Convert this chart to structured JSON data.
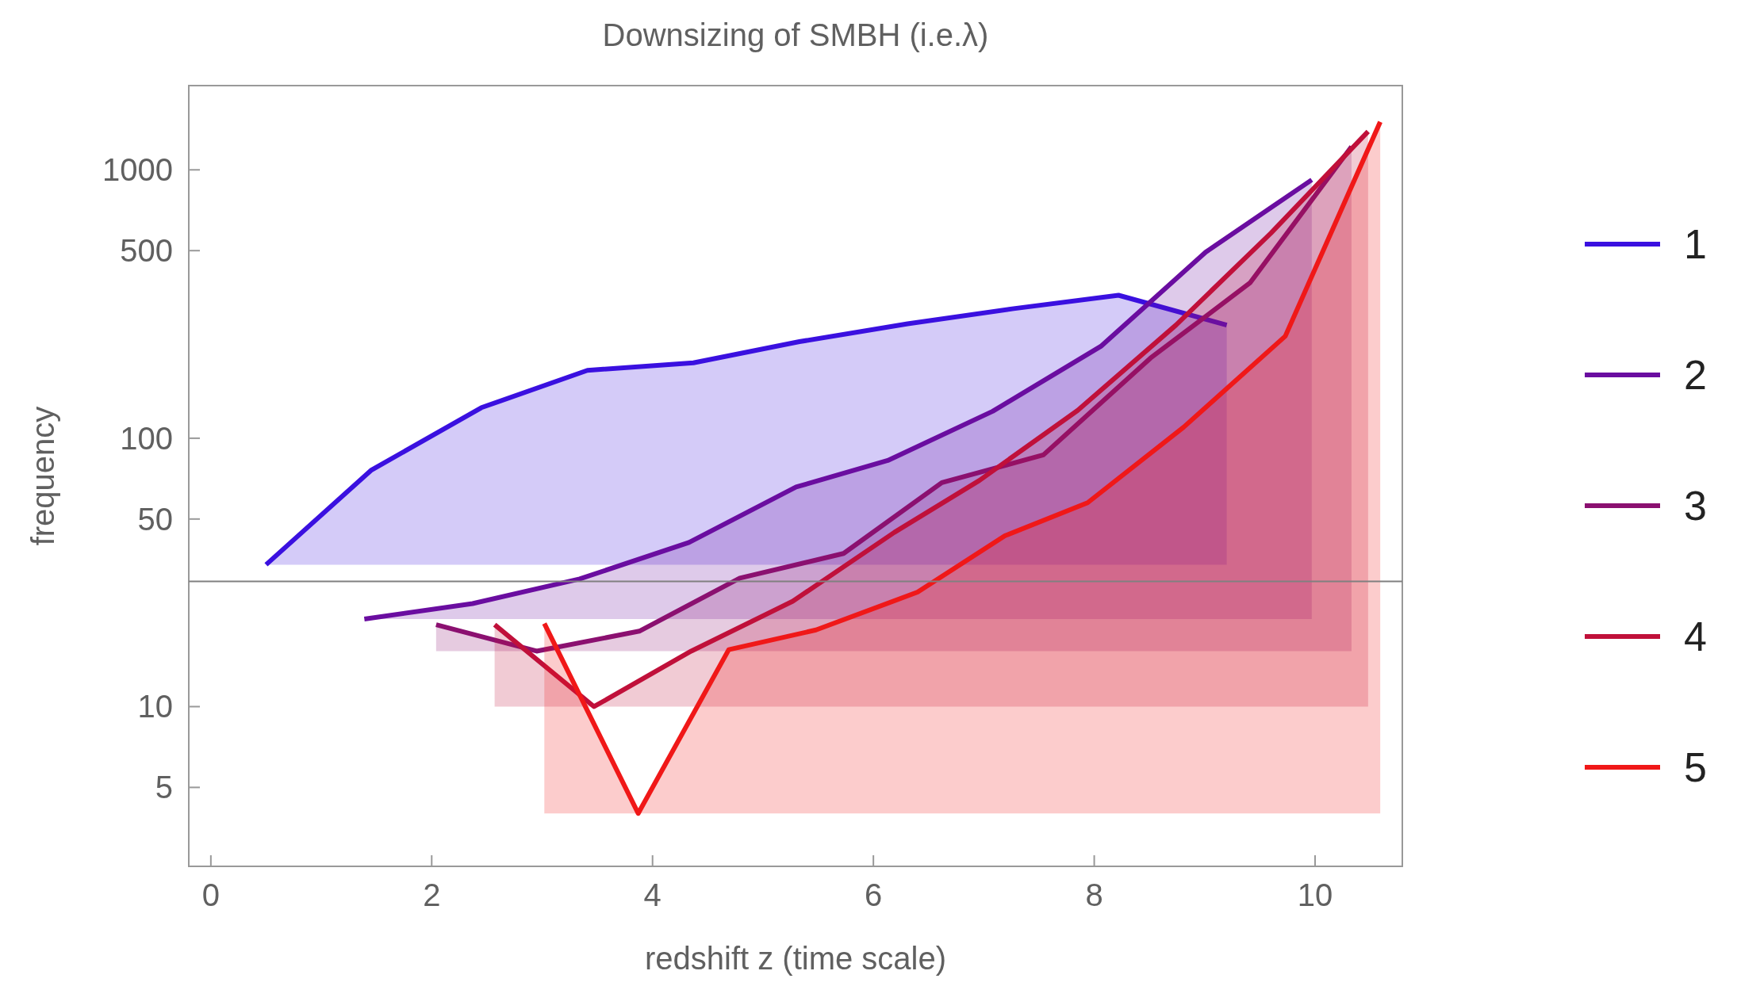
{
  "chart_data": {
    "type": "area",
    "title": "Downsizing of SMBH (i.e.λ)",
    "xlabel": "redshift z (time scale)",
    "ylabel": "frequency",
    "log": "y",
    "xlim": [
      -0.2,
      10.79
    ],
    "ylim": [
      2.54,
      2060
    ],
    "xticks": [
      0,
      2,
      4,
      6,
      8,
      10
    ],
    "yticks": [
      5,
      10,
      50,
      100,
      500,
      1000
    ],
    "legend": "right",
    "grid": false,
    "ref_lines": [
      {
        "axis": "y",
        "value": 29.3,
        "color": "#808080"
      }
    ],
    "series": [
      {
        "name": "1",
        "color": "#3a10e0",
        "x": [
          0.5,
          1.45,
          2.45,
          3.41,
          4.37,
          5.33,
          6.31,
          7.27,
          8.22,
          9.2
        ],
        "values": [
          33.8,
          75.9,
          130,
          179,
          191,
          229,
          267,
          304,
          341,
          264
        ]
      },
      {
        "name": "2",
        "color": "#6a0da0",
        "x": [
          1.39,
          2.37,
          3.34,
          4.33,
          5.3,
          6.13,
          7.08,
          8.06,
          9.01,
          9.97
        ],
        "values": [
          21.2,
          24.2,
          29.9,
          40.9,
          65.8,
          82.6,
          126,
          220,
          494,
          918
        ]
      },
      {
        "name": "3",
        "color": "#8b1070",
        "x": [
          2.04,
          2.95,
          3.88,
          4.79,
          5.73,
          6.62,
          7.54,
          8.51,
          9.41,
          10.33
        ],
        "values": [
          20.2,
          16.1,
          19.1,
          30.1,
          37.2,
          68.3,
          86.7,
          199,
          379,
          1220
        ]
      },
      {
        "name": "4",
        "color": "#c0103a",
        "x": [
          2.57,
          3.47,
          4.35,
          5.27,
          6.19,
          6.96,
          7.85,
          8.74,
          9.6,
          10.48
        ],
        "values": [
          20.2,
          10,
          16.1,
          24.7,
          44.6,
          69.6,
          127,
          264,
          581,
          1390
        ]
      },
      {
        "name": "5",
        "color": "#f01818",
        "x": [
          3.02,
          3.87,
          4.69,
          5.48,
          6.4,
          7.19,
          7.94,
          8.81,
          9.73,
          10.59
        ],
        "values": [
          20.4,
          4.0,
          16.3,
          19.3,
          26.7,
          43.3,
          57.5,
          110,
          240,
          1510
        ]
      }
    ]
  }
}
